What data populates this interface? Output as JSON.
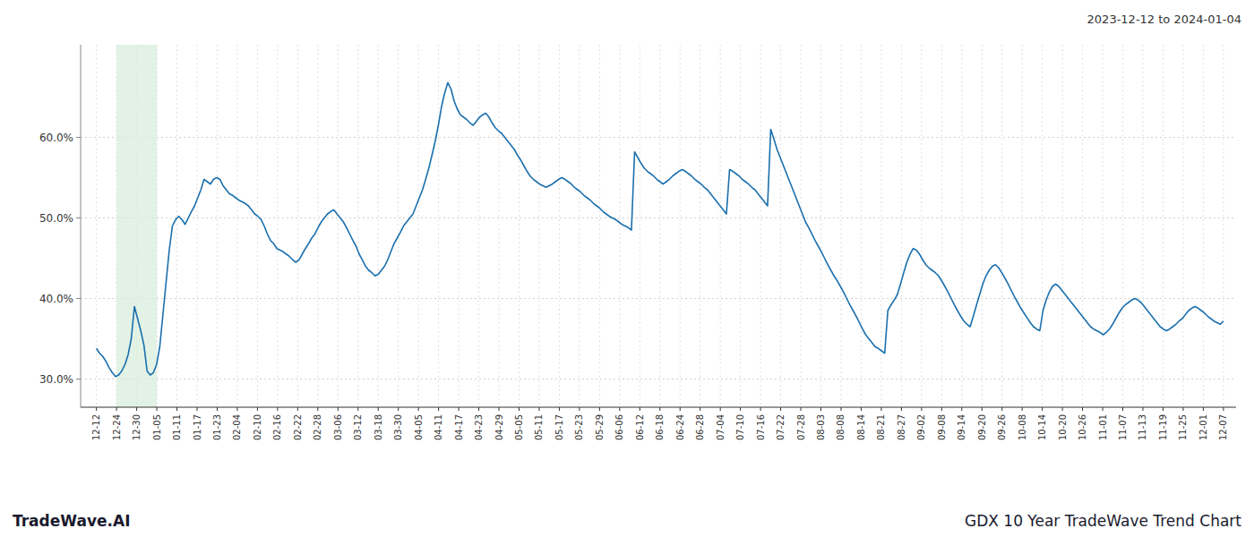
{
  "chart_data": {
    "type": "line",
    "title": "GDX 10 Year TradeWave Trend Chart",
    "subtitle": "2023-12-12 to 2024-01-04",
    "annotations": [
      "TradeWave.AI"
    ],
    "color": "#1a6fad",
    "grid": true,
    "shade": {
      "range": [
        6.357142857142857,
        19.071428571428573
      ],
      "color": "#d6edda"
    },
    "xlim": [
      -5,
      360
    ],
    "xticks": [
      {
        "value": 0,
        "label": "12-12"
      },
      {
        "value": 6.357142857142857,
        "label": "12-24"
      },
      {
        "value": 12.714285714285714,
        "label": "12-30"
      },
      {
        "value": 19.071428571428573,
        "label": "01-05"
      },
      {
        "value": 25.428571428571427,
        "label": "01-11"
      },
      {
        "value": 31.785714285714285,
        "label": "01-17"
      },
      {
        "value": 38.142857142857146,
        "label": "01-23"
      },
      {
        "value": 44.5,
        "label": "02-04"
      },
      {
        "value": 50.857142857142854,
        "label": "02-10"
      },
      {
        "value": 57.214285714285715,
        "label": "02-16"
      },
      {
        "value": 63.57142857142857,
        "label": "02-22"
      },
      {
        "value": 69.92857142857143,
        "label": "02-28"
      },
      {
        "value": 76.28571428571429,
        "label": "03-06"
      },
      {
        "value": 82.64285714285714,
        "label": "03-12"
      },
      {
        "value": 89,
        "label": "03-18"
      },
      {
        "value": 95.35714285714286,
        "label": "03-30"
      },
      {
        "value": 101.71428571428571,
        "label": "04-05"
      },
      {
        "value": 108.07142857142857,
        "label": "04-11"
      },
      {
        "value": 114.42857142857143,
        "label": "04-17"
      },
      {
        "value": 120.78571428571429,
        "label": "04-23"
      },
      {
        "value": 127.14285714285714,
        "label": "04-29"
      },
      {
        "value": 133.5,
        "label": "05-05"
      },
      {
        "value": 139.85714285714286,
        "label": "05-11"
      },
      {
        "value": 146.21428571428572,
        "label": "05-17"
      },
      {
        "value": 152.57142857142858,
        "label": "05-23"
      },
      {
        "value": 158.92857142857142,
        "label": "05-29"
      },
      {
        "value": 165.28571428571428,
        "label": "06-06"
      },
      {
        "value": 171.64285714285714,
        "label": "06-12"
      },
      {
        "value": 178,
        "label": "06-18"
      },
      {
        "value": 184.35714285714286,
        "label": "06-24"
      },
      {
        "value": 190.71428571428572,
        "label": "06-28"
      },
      {
        "value": 197.07142857142858,
        "label": "07-04"
      },
      {
        "value": 203.42857142857142,
        "label": "07-10"
      },
      {
        "value": 209.78571428571428,
        "label": "07-16"
      },
      {
        "value": 216.14285714285714,
        "label": "07-22"
      },
      {
        "value": 222.5,
        "label": "07-28"
      },
      {
        "value": 228.85714285714286,
        "label": "08-03"
      },
      {
        "value": 235.21428571428572,
        "label": "08-08"
      },
      {
        "value": 241.57142857142858,
        "label": "08-14"
      },
      {
        "value": 247.92857142857142,
        "label": "08-21"
      },
      {
        "value": 254.28571428571428,
        "label": "08-27"
      },
      {
        "value": 260.64285714285717,
        "label": "09-02"
      },
      {
        "value": 267,
        "label": "09-08"
      },
      {
        "value": 273.35714285714283,
        "label": "09-14"
      },
      {
        "value": 279.7142857142857,
        "label": "09-20"
      },
      {
        "value": 286.07142857142856,
        "label": "09-26"
      },
      {
        "value": 292.42857142857144,
        "label": "10-08"
      },
      {
        "value": 298.7857142857143,
        "label": "10-14"
      },
      {
        "value": 305.14285714285717,
        "label": "10-20"
      },
      {
        "value": 311.5,
        "label": "10-26"
      },
      {
        "value": 317.85714285714283,
        "label": "11-01"
      },
      {
        "value": 324.2142857142857,
        "label": "11-07"
      },
      {
        "value": 330.57142857142856,
        "label": "11-13"
      },
      {
        "value": 336.92857142857144,
        "label": "11-19"
      },
      {
        "value": 343.2857142857143,
        "label": "11-25"
      },
      {
        "value": 349.64285714285717,
        "label": "12-01"
      },
      {
        "value": 356,
        "label": "12-07"
      }
    ],
    "ylim": [
      0.265,
      0.715
    ],
    "yticks": [
      {
        "value": 0.3,
        "label": "30.0%"
      },
      {
        "value": 0.4,
        "label": "40.0%"
      },
      {
        "value": 0.5,
        "label": "50.0%"
      },
      {
        "value": 0.6,
        "label": "60.0%"
      }
    ],
    "values": [
      0.338,
      0.332,
      0.328,
      0.322,
      0.314,
      0.308,
      0.303,
      0.305,
      0.31,
      0.318,
      0.33,
      0.35,
      0.39,
      0.375,
      0.36,
      0.342,
      0.31,
      0.305,
      0.308,
      0.318,
      0.34,
      0.38,
      0.42,
      0.46,
      0.49,
      0.498,
      0.502,
      0.498,
      0.492,
      0.5,
      0.508,
      0.515,
      0.525,
      0.535,
      0.548,
      0.545,
      0.542,
      0.548,
      0.55,
      0.548,
      0.54,
      0.535,
      0.53,
      0.528,
      0.525,
      0.522,
      0.52,
      0.518,
      0.515,
      0.51,
      0.505,
      0.502,
      0.498,
      0.49,
      0.48,
      0.472,
      0.468,
      0.462,
      0.46,
      0.458,
      0.455,
      0.452,
      0.448,
      0.445,
      0.448,
      0.455,
      0.462,
      0.468,
      0.475,
      0.48,
      0.488,
      0.495,
      0.5,
      0.505,
      0.508,
      0.51,
      0.505,
      0.5,
      0.495,
      0.488,
      0.48,
      0.472,
      0.465,
      0.455,
      0.448,
      0.44,
      0.435,
      0.432,
      0.428,
      0.43,
      0.435,
      0.44,
      0.448,
      0.458,
      0.468,
      0.475,
      0.482,
      0.49,
      0.495,
      0.5,
      0.505,
      0.515,
      0.525,
      0.535,
      0.548,
      0.562,
      0.578,
      0.595,
      0.615,
      0.638,
      0.655,
      0.668,
      0.66,
      0.645,
      0.635,
      0.628,
      0.625,
      0.622,
      0.618,
      0.615,
      0.62,
      0.625,
      0.628,
      0.63,
      0.625,
      0.618,
      0.612,
      0.608,
      0.605,
      0.6,
      0.595,
      0.59,
      0.585,
      0.578,
      0.572,
      0.565,
      0.558,
      0.552,
      0.548,
      0.545,
      0.542,
      0.54,
      0.538,
      0.54,
      0.542,
      0.545,
      0.548,
      0.55,
      0.548,
      0.545,
      0.542,
      0.538,
      0.535,
      0.532,
      0.528,
      0.525,
      0.522,
      0.518,
      0.515,
      0.512,
      0.508,
      0.505,
      0.502,
      0.5,
      0.498,
      0.495,
      0.492,
      0.49,
      0.488,
      0.485,
      0.582,
      0.575,
      0.568,
      0.562,
      0.558,
      0.555,
      0.552,
      0.548,
      0.545,
      0.542,
      0.545,
      0.548,
      0.552,
      0.555,
      0.558,
      0.56,
      0.558,
      0.555,
      0.552,
      0.548,
      0.545,
      0.542,
      0.538,
      0.535,
      0.53,
      0.525,
      0.52,
      0.515,
      0.51,
      0.505,
      0.56,
      0.558,
      0.555,
      0.552,
      0.548,
      0.545,
      0.542,
      0.538,
      0.535,
      0.53,
      0.525,
      0.52,
      0.515,
      0.61,
      0.598,
      0.585,
      0.575,
      0.565,
      0.555,
      0.545,
      0.535,
      0.525,
      0.515,
      0.505,
      0.495,
      0.488,
      0.48,
      0.472,
      0.465,
      0.458,
      0.45,
      0.442,
      0.435,
      0.428,
      0.422,
      0.415,
      0.408,
      0.4,
      0.392,
      0.385,
      0.378,
      0.37,
      0.362,
      0.355,
      0.35,
      0.345,
      0.34,
      0.338,
      0.335,
      0.332,
      0.385,
      0.392,
      0.398,
      0.405,
      0.418,
      0.432,
      0.445,
      0.455,
      0.462,
      0.46,
      0.455,
      0.448,
      0.442,
      0.438,
      0.435,
      0.432,
      0.428,
      0.422,
      0.415,
      0.408,
      0.4,
      0.392,
      0.385,
      0.378,
      0.372,
      0.368,
      0.365,
      0.378,
      0.392,
      0.405,
      0.418,
      0.428,
      0.435,
      0.44,
      0.442,
      0.438,
      0.432,
      0.425,
      0.418,
      0.41,
      0.402,
      0.395,
      0.388,
      0.382,
      0.376,
      0.37,
      0.365,
      0.362,
      0.36,
      0.385,
      0.398,
      0.408,
      0.415,
      0.418,
      0.415,
      0.41,
      0.405,
      0.4,
      0.395,
      0.39,
      0.385,
      0.38,
      0.375,
      0.37,
      0.365,
      0.362,
      0.36,
      0.358,
      0.355,
      0.358,
      0.362,
      0.368,
      0.375,
      0.382,
      0.388,
      0.392,
      0.395,
      0.398,
      0.4,
      0.398,
      0.395,
      0.39,
      0.385,
      0.38,
      0.375,
      0.37,
      0.365,
      0.362,
      0.36,
      0.362,
      0.365,
      0.368,
      0.372,
      0.375,
      0.38,
      0.385,
      0.388,
      0.39,
      0.388,
      0.385,
      0.382,
      0.378,
      0.375,
      0.372,
      0.37,
      0.368,
      0.372
    ]
  }
}
